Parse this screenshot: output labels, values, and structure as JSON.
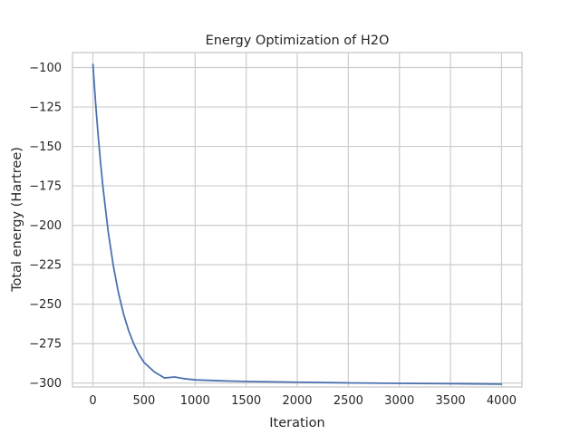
{
  "chart_data": {
    "type": "line",
    "title": "Energy Optimization of H2O",
    "xlabel": "Iteration",
    "ylabel": "Total energy (Hartree)",
    "xlim": [
      -200,
      4200
    ],
    "ylim": [
      -302.5,
      -90.5
    ],
    "x_ticks": [
      0,
      500,
      1000,
      1500,
      2000,
      2500,
      3000,
      3500,
      4000
    ],
    "y_ticks": [
      -100,
      -125,
      -150,
      -175,
      -200,
      -225,
      -250,
      -275,
      -300
    ],
    "x_tick_labels": [
      "0",
      "500",
      "1000",
      "1500",
      "2000",
      "2500",
      "3000",
      "3500",
      "4000"
    ],
    "y_tick_labels": [
      "−100",
      "−125",
      "−150",
      "−175",
      "−200",
      "−225",
      "−250",
      "−275",
      "−300"
    ],
    "grid": true,
    "series": [
      {
        "color": "#4c72b0",
        "x": [
          0,
          25,
          50,
          75,
          100,
          150,
          200,
          250,
          300,
          350,
          400,
          450,
          500,
          600,
          700,
          800,
          900,
          1000,
          1250,
          1500,
          2000,
          2500,
          3000,
          3500,
          4000
        ],
        "y": [
          -98.0,
          -121.5,
          -142.2,
          -160.6,
          -176.9,
          -204.3,
          -225.8,
          -242.9,
          -256.3,
          -266.9,
          -275.2,
          -281.8,
          -286.9,
          -292.9,
          -296.8,
          -296.2,
          -297.3,
          -298.0,
          -298.6,
          -299.0,
          -299.5,
          -299.9,
          -300.2,
          -300.4,
          -300.7
        ]
      }
    ]
  }
}
